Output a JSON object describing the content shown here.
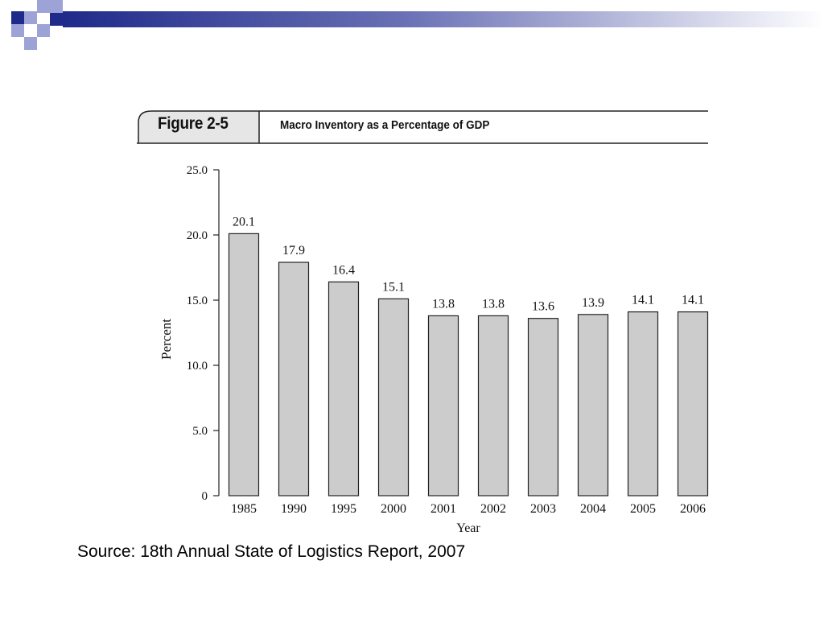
{
  "slide": {
    "source_text": "Source: 18th Annual State of Logistics Report, 2007",
    "accent_colors": [
      "#1f2a8a",
      "#9da3d6",
      "#ffffff"
    ]
  },
  "figure": {
    "label": "Figure 2-5",
    "title": "Macro Inventory as a Percentage of GDP"
  },
  "chart_data": {
    "type": "bar",
    "categories": [
      "1985",
      "1990",
      "1995",
      "2000",
      "2001",
      "2002",
      "2003",
      "2004",
      "2005",
      "2006"
    ],
    "values": [
      20.1,
      17.9,
      16.4,
      15.1,
      13.8,
      13.8,
      13.6,
      13.9,
      14.1,
      14.1
    ],
    "value_labels": [
      "20.1",
      "17.9",
      "16.4",
      "15.1",
      "13.8",
      "13.8",
      "13.6",
      "13.9",
      "14.1",
      "14.1"
    ],
    "yticks": [
      "0",
      "5.0",
      "10.0",
      "15.0",
      "20.0",
      "25.0"
    ],
    "ytick_values": [
      0,
      5,
      10,
      15,
      20,
      25
    ],
    "xlabel": "Year",
    "ylabel": "Percent",
    "ylim": [
      0,
      25
    ],
    "grid": false,
    "bar_color": "#cccccc",
    "bar_edge_color": "#222222"
  }
}
